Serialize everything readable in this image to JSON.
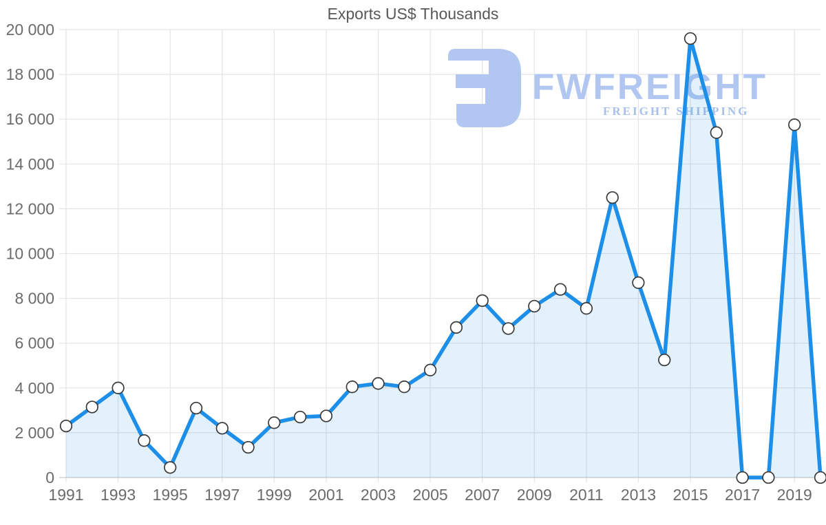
{
  "watermark": {
    "brand": "FWFREIGHT",
    "tagline": "FREIGHT SHIPPING",
    "logo_color": "#b1c7f1",
    "brand_color": "#b1c7f1",
    "tagline_color": "#a6c0ed"
  },
  "chart_data": {
    "type": "area",
    "title": "Exports US$ Thousands",
    "xlabel": "",
    "ylabel": "",
    "x": [
      1991,
      1992,
      1993,
      1994,
      1995,
      1996,
      1997,
      1998,
      1999,
      2000,
      2001,
      2002,
      2003,
      2004,
      2005,
      2006,
      2007,
      2008,
      2009,
      2010,
      2011,
      2012,
      2013,
      2014,
      2015,
      2016,
      2017,
      2018,
      2019,
      2020
    ],
    "values": [
      2300,
      3150,
      4000,
      1650,
      450,
      3100,
      2200,
      1350,
      2450,
      2700,
      2750,
      4050,
      4200,
      4050,
      4800,
      6700,
      7900,
      6650,
      7650,
      8400,
      7550,
      12500,
      8700,
      5250,
      19600,
      15400,
      0,
      0,
      15750,
      0
    ],
    "ylim": [
      0,
      20000
    ],
    "y_ticks": [
      0,
      2000,
      4000,
      6000,
      8000,
      10000,
      12000,
      14000,
      16000,
      18000,
      20000
    ],
    "y_tick_labels": [
      "0",
      "2 000",
      "4 000",
      "6 000",
      "8 000",
      "10 000",
      "12 000",
      "14 000",
      "16 000",
      "18 000",
      "20 000"
    ],
    "x_tick_labels": [
      "1991",
      "1993",
      "1995",
      "1997",
      "1999",
      "2001",
      "2003",
      "2005",
      "2007",
      "2009",
      "2011",
      "2013",
      "2015",
      "2017",
      "2019"
    ],
    "grid": true,
    "legend": "none",
    "line_color": "#1d8fe9",
    "fill_color": "rgba(30,144,233,0.13)",
    "marker_fill": "#ffffff",
    "marker_stroke": "#3a3a3a",
    "grid_color": "#e4e4e4",
    "axis_color": "#c9c9c9",
    "tick_color": "#6b6b6b",
    "title_color": "#58585a"
  }
}
